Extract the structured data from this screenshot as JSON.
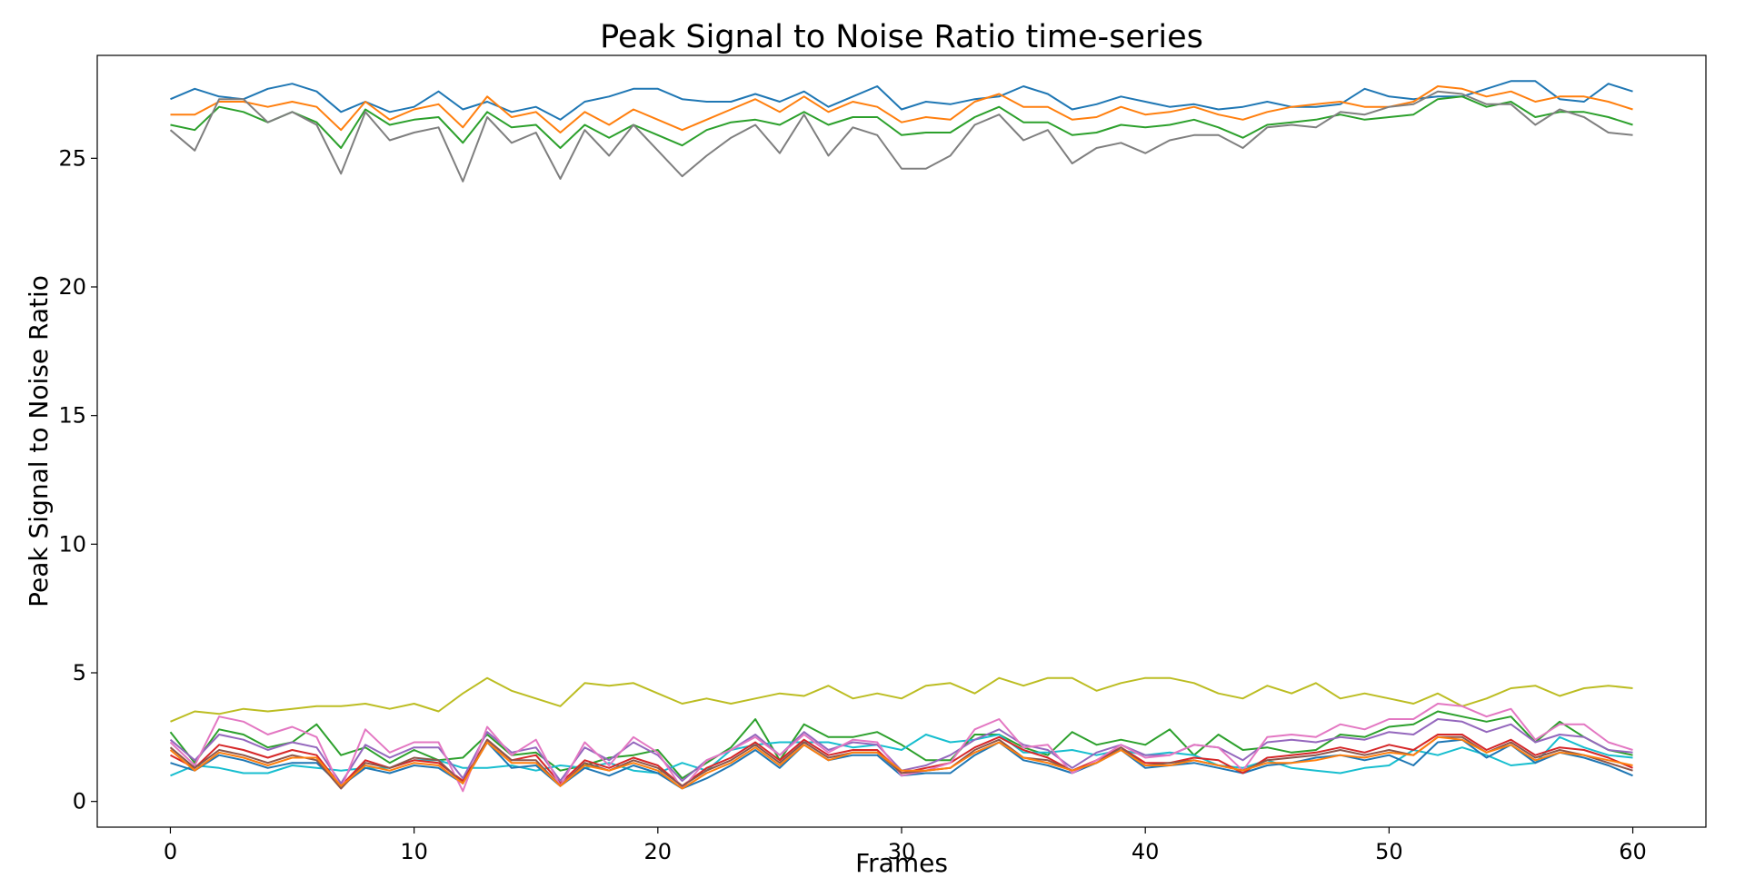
{
  "chart_data": {
    "type": "line",
    "title": "Peak Signal to Noise Ratio time-series",
    "xlabel": "Frames",
    "ylabel": "Peak Signal to Noise Ratio",
    "xlim": [
      -3,
      63
    ],
    "ylim": [
      -1,
      29
    ],
    "xticks": [
      0,
      10,
      20,
      30,
      40,
      50,
      60
    ],
    "yticks": [
      0,
      5,
      10,
      15,
      20,
      25
    ],
    "grid": false,
    "legend": "none",
    "x": [
      0,
      1,
      2,
      3,
      4,
      5,
      6,
      7,
      8,
      9,
      10,
      11,
      12,
      13,
      14,
      15,
      16,
      17,
      18,
      19,
      20,
      21,
      22,
      23,
      24,
      25,
      26,
      27,
      28,
      29,
      30,
      31,
      32,
      33,
      34,
      35,
      36,
      37,
      38,
      39,
      40,
      41,
      42,
      43,
      44,
      45,
      46,
      47,
      48,
      49,
      50,
      51,
      52,
      53,
      54,
      55,
      56,
      57,
      58,
      59,
      60
    ],
    "series": [
      {
        "color": "#1f77b4",
        "values": [
          27.3,
          27.7,
          27.4,
          27.3,
          27.7,
          27.9,
          27.6,
          26.8,
          27.2,
          26.8,
          27.0,
          27.6,
          26.9,
          27.2,
          26.8,
          27.0,
          26.5,
          27.2,
          27.4,
          27.7,
          27.7,
          27.3,
          27.2,
          27.2,
          27.5,
          27.2,
          27.6,
          27.0,
          27.4,
          27.8,
          26.9,
          27.2,
          27.1,
          27.3,
          27.4,
          27.8,
          27.5,
          26.9,
          27.1,
          27.4,
          27.2,
          27.0,
          27.1,
          26.9,
          27.0,
          27.2,
          27.0,
          27.0,
          27.1,
          27.7,
          27.4,
          27.3,
          27.4,
          27.4,
          27.7,
          28.0,
          28.0,
          27.3,
          27.2,
          27.9,
          27.6
        ]
      },
      {
        "color": "#ff7f0e",
        "values": [
          26.7,
          26.7,
          27.2,
          27.2,
          27.0,
          27.2,
          27.0,
          26.1,
          27.2,
          26.5,
          26.9,
          27.1,
          26.2,
          27.4,
          26.6,
          26.8,
          26.0,
          26.8,
          26.3,
          26.9,
          26.5,
          26.1,
          26.5,
          26.9,
          27.3,
          26.8,
          27.4,
          26.8,
          27.2,
          27.0,
          26.4,
          26.6,
          26.5,
          27.2,
          27.5,
          27.0,
          27.0,
          26.5,
          26.6,
          27.0,
          26.7,
          26.8,
          27.0,
          26.7,
          26.5,
          26.8,
          27.0,
          27.1,
          27.2,
          27.0,
          27.0,
          27.2,
          27.8,
          27.7,
          27.4,
          27.6,
          27.2,
          27.4,
          27.4,
          27.2,
          26.9
        ]
      },
      {
        "color": "#2ca02c",
        "values": [
          26.3,
          26.1,
          27.0,
          26.8,
          26.4,
          26.8,
          26.4,
          25.4,
          26.9,
          26.3,
          26.5,
          26.6,
          25.6,
          26.8,
          26.2,
          26.3,
          25.4,
          26.3,
          25.8,
          26.3,
          25.9,
          25.5,
          26.1,
          26.4,
          26.5,
          26.3,
          26.8,
          26.3,
          26.6,
          26.6,
          25.9,
          26.0,
          26.0,
          26.6,
          27.0,
          26.4,
          26.4,
          25.9,
          26.0,
          26.3,
          26.2,
          26.3,
          26.5,
          26.2,
          25.8,
          26.3,
          26.4,
          26.5,
          26.7,
          26.5,
          26.6,
          26.7,
          27.3,
          27.4,
          27.0,
          27.2,
          26.6,
          26.8,
          26.8,
          26.6,
          26.3
        ]
      },
      {
        "color": "#7f7f7f",
        "values": [
          26.1,
          25.3,
          27.3,
          27.3,
          26.4,
          26.8,
          26.3,
          24.4,
          26.8,
          25.7,
          26.0,
          26.2,
          24.1,
          26.6,
          25.6,
          26.0,
          24.2,
          26.1,
          25.1,
          26.3,
          25.3,
          24.3,
          25.1,
          25.8,
          26.3,
          25.2,
          26.7,
          25.1,
          26.2,
          25.9,
          24.6,
          24.6,
          25.1,
          26.3,
          26.7,
          25.7,
          26.1,
          24.8,
          25.4,
          25.6,
          25.2,
          25.7,
          25.9,
          25.9,
          25.4,
          26.2,
          26.3,
          26.2,
          26.8,
          26.7,
          27.0,
          27.1,
          27.6,
          27.5,
          27.1,
          27.1,
          26.3,
          26.9,
          26.6,
          26.0,
          25.9
        ]
      },
      {
        "color": "#bcbd22",
        "values": [
          3.1,
          3.5,
          3.4,
          3.6,
          3.5,
          3.6,
          3.7,
          3.7,
          3.8,
          3.6,
          3.8,
          3.5,
          4.2,
          4.8,
          4.3,
          4.0,
          3.7,
          4.6,
          4.5,
          4.6,
          4.2,
          3.8,
          4.0,
          3.8,
          4.0,
          4.2,
          4.1,
          4.5,
          4.0,
          4.2,
          4.0,
          4.5,
          4.6,
          4.2,
          4.8,
          4.5,
          4.8,
          4.8,
          4.3,
          4.6,
          4.8,
          4.8,
          4.6,
          4.2,
          4.0,
          4.5,
          4.2,
          4.6,
          4.0,
          4.2,
          4.0,
          3.8,
          4.2,
          3.7,
          4.0,
          4.4,
          4.5,
          4.1,
          4.4,
          4.5,
          4.4
        ]
      },
      {
        "color": "#2ca02c",
        "values": [
          2.7,
          1.5,
          2.8,
          2.6,
          2.1,
          2.3,
          3.0,
          1.8,
          2.1,
          1.5,
          2.0,
          1.6,
          1.7,
          2.6,
          1.8,
          1.9,
          1.2,
          1.4,
          1.7,
          1.8,
          2.0,
          0.9,
          1.5,
          2.1,
          3.2,
          1.6,
          3.0,
          2.5,
          2.5,
          2.7,
          2.2,
          1.6,
          1.6,
          2.6,
          2.6,
          2.1,
          1.8,
          2.7,
          2.2,
          2.4,
          2.2,
          2.8,
          1.8,
          2.6,
          2.0,
          2.1,
          1.9,
          2.0,
          2.6,
          2.5,
          2.9,
          3.0,
          3.5,
          3.3,
          3.1,
          3.3,
          2.3,
          3.1,
          2.5,
          2.0,
          1.8
        ]
      },
      {
        "color": "#17becf",
        "values": [
          1.0,
          1.4,
          1.3,
          1.1,
          1.1,
          1.4,
          1.3,
          1.2,
          1.3,
          1.3,
          1.6,
          1.6,
          1.3,
          1.3,
          1.4,
          1.2,
          1.4,
          1.3,
          1.5,
          1.2,
          1.1,
          1.5,
          1.2,
          2.0,
          2.2,
          2.3,
          2.3,
          2.3,
          2.1,
          2.2,
          2.0,
          2.6,
          2.3,
          2.4,
          2.6,
          1.9,
          1.9,
          2.0,
          1.8,
          2.0,
          1.8,
          1.9,
          1.8,
          1.4,
          1.3,
          1.6,
          1.3,
          1.2,
          1.1,
          1.3,
          1.4,
          2.0,
          1.8,
          2.1,
          1.8,
          1.4,
          1.5,
          2.5,
          2.1,
          1.8,
          1.7
        ]
      },
      {
        "color": "#1f77b4",
        "values": [
          1.5,
          1.2,
          1.8,
          1.6,
          1.3,
          1.5,
          1.5,
          0.6,
          1.3,
          1.1,
          1.4,
          1.3,
          0.7,
          2.3,
          1.3,
          1.4,
          0.6,
          1.3,
          1.0,
          1.4,
          1.1,
          0.5,
          0.9,
          1.4,
          2.0,
          1.3,
          2.2,
          1.6,
          1.8,
          1.8,
          1.0,
          1.1,
          1.1,
          1.8,
          2.3,
          1.6,
          1.4,
          1.1,
          1.5,
          2.0,
          1.3,
          1.4,
          1.5,
          1.3,
          1.1,
          1.4,
          1.5,
          1.7,
          1.8,
          1.6,
          1.8,
          1.4,
          2.3,
          2.4,
          1.7,
          2.2,
          1.5,
          1.9,
          1.7,
          1.4,
          1.0
        ]
      },
      {
        "color": "#d62728",
        "values": [
          1.8,
          1.3,
          2.2,
          2.0,
          1.7,
          2.0,
          1.8,
          0.6,
          1.6,
          1.3,
          1.6,
          1.5,
          0.8,
          2.4,
          1.6,
          1.8,
          0.7,
          1.6,
          1.3,
          1.7,
          1.4,
          0.6,
          1.3,
          1.7,
          2.3,
          1.6,
          2.4,
          1.8,
          2.0,
          2.0,
          1.1,
          1.3,
          1.5,
          2.1,
          2.5,
          2.0,
          1.7,
          1.2,
          1.6,
          2.1,
          1.5,
          1.5,
          1.7,
          1.6,
          1.1,
          1.7,
          1.8,
          1.9,
          2.1,
          1.9,
          2.2,
          2.0,
          2.6,
          2.6,
          2.0,
          2.4,
          1.8,
          2.1,
          2.0,
          1.7,
          1.3
        ]
      },
      {
        "color": "#9467bd",
        "values": [
          2.4,
          1.6,
          2.6,
          2.4,
          2.0,
          2.3,
          2.1,
          0.7,
          2.2,
          1.7,
          2.1,
          2.1,
          0.9,
          2.7,
          1.9,
          2.1,
          0.8,
          2.1,
          1.6,
          2.3,
          1.8,
          0.8,
          1.6,
          2.0,
          2.6,
          1.8,
          2.7,
          2.0,
          2.3,
          2.2,
          1.2,
          1.4,
          1.8,
          2.4,
          2.8,
          2.2,
          2.0,
          1.3,
          1.9,
          2.2,
          1.8,
          1.8,
          2.2,
          2.1,
          1.6,
          2.3,
          2.4,
          2.3,
          2.5,
          2.4,
          2.7,
          2.6,
          3.2,
          3.1,
          2.7,
          3.0,
          2.3,
          2.6,
          2.5,
          2.0,
          1.9
        ]
      },
      {
        "color": "#e377c2",
        "values": [
          2.3,
          1.4,
          3.3,
          3.1,
          2.6,
          2.9,
          2.5,
          0.5,
          2.8,
          1.9,
          2.3,
          2.3,
          0.4,
          2.9,
          1.8,
          2.4,
          0.6,
          2.3,
          1.4,
          2.5,
          1.9,
          0.5,
          1.6,
          2.0,
          2.5,
          1.8,
          2.6,
          1.9,
          2.4,
          2.3,
          1.0,
          1.2,
          1.5,
          2.8,
          3.2,
          2.1,
          2.2,
          1.1,
          1.6,
          2.2,
          1.7,
          1.8,
          2.2,
          2.1,
          1.2,
          2.5,
          2.6,
          2.5,
          3.0,
          2.8,
          3.2,
          3.2,
          3.8,
          3.7,
          3.3,
          3.6,
          2.4,
          3.0,
          3.0,
          2.3,
          2.0
        ]
      },
      {
        "color": "#8c564b",
        "values": [
          2.1,
          1.3,
          2.0,
          1.8,
          1.5,
          1.8,
          1.6,
          0.5,
          1.5,
          1.3,
          1.7,
          1.6,
          0.7,
          2.4,
          1.6,
          1.6,
          0.6,
          1.5,
          1.2,
          1.6,
          1.3,
          0.6,
          1.2,
          1.6,
          2.2,
          1.5,
          2.3,
          1.7,
          1.9,
          1.9,
          1.1,
          1.2,
          1.3,
          2.0,
          2.4,
          1.7,
          1.6,
          1.2,
          1.5,
          2.1,
          1.4,
          1.5,
          1.6,
          1.4,
          1.2,
          1.6,
          1.7,
          1.8,
          2.0,
          1.8,
          2.0,
          1.8,
          2.5,
          2.5,
          1.9,
          2.3,
          1.7,
          2.0,
          1.8,
          1.5,
          1.2
        ]
      },
      {
        "color": "#ff7f0e",
        "values": [
          2.0,
          1.2,
          1.9,
          1.7,
          1.4,
          1.7,
          1.7,
          0.6,
          1.4,
          1.2,
          1.5,
          1.4,
          0.7,
          2.3,
          1.5,
          1.5,
          0.6,
          1.4,
          1.2,
          1.5,
          1.2,
          0.5,
          1.1,
          1.5,
          2.1,
          1.4,
          2.2,
          1.6,
          1.9,
          1.9,
          1.2,
          1.2,
          1.3,
          1.9,
          2.3,
          1.7,
          1.5,
          1.2,
          1.5,
          2.0,
          1.4,
          1.4,
          1.6,
          1.4,
          1.2,
          1.5,
          1.5,
          1.6,
          1.8,
          1.7,
          1.9,
          1.8,
          2.5,
          2.4,
          1.9,
          2.2,
          1.6,
          1.9,
          1.8,
          1.6,
          1.4
        ]
      }
    ]
  }
}
